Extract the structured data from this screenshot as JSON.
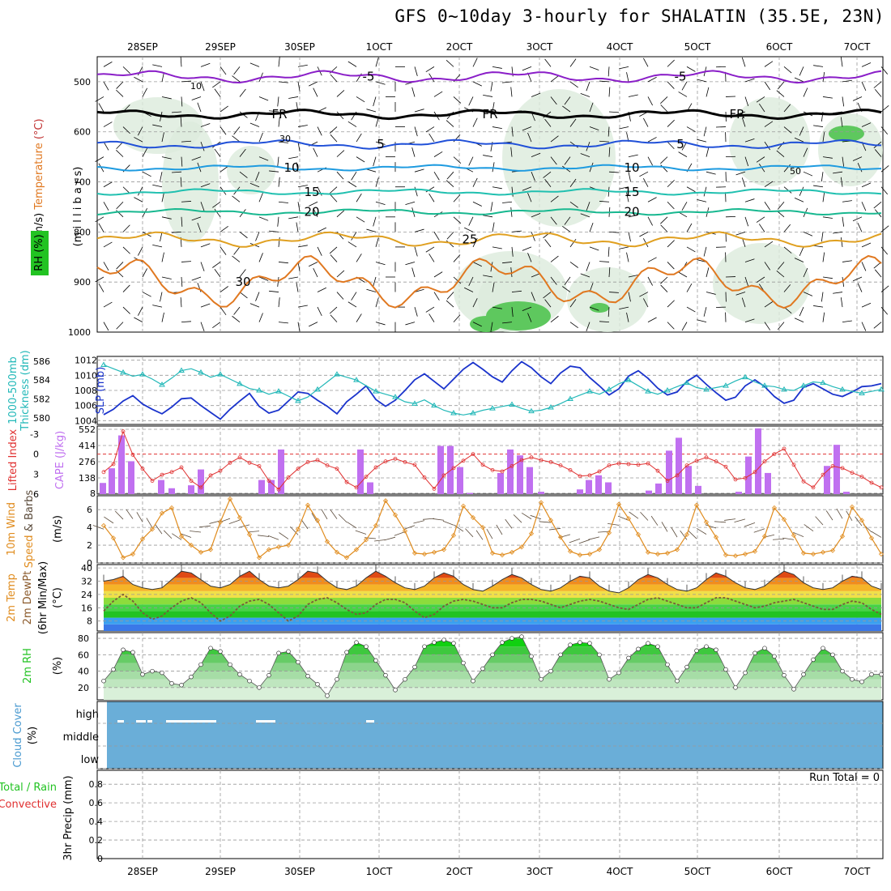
{
  "title": "GFS 0~10day 3-hourly for SHALATIN (35.5E, 23N)",
  "dates": [
    "28SEP",
    "29SEP",
    "30SEP",
    "1OCT",
    "2OCT",
    "3OCT",
    "4OCT",
    "5OCT",
    "6OCT",
    "7OCT"
  ],
  "colors": {
    "temp_lines": "#1e90ff",
    "slp": "#1a33cc",
    "thickness": "#22b8b8",
    "lifted": "#e03030",
    "cape": "#c070f0",
    "wind": "#e08c1e",
    "rh_fill": "#22c322",
    "cloud": "#6aaed8",
    "frz": "#000000",
    "minus5": "#8a1ec8"
  },
  "chart_data": [
    {
      "type": "heatmap",
      "panel": "upper-air cross section",
      "ylabel": "Wind (m/s) Temperature (°C) RH (%)   (m i l l i b a r s)",
      "y_ticks": [
        500,
        600,
        700,
        800,
        900,
        1000
      ],
      "ylim": [
        1000,
        450
      ],
      "isotherm_labels": [
        "-5",
        "FR",
        "5",
        "10",
        "15",
        "20",
        "25",
        "30"
      ],
      "rh_labels": [
        "10",
        "30",
        "50"
      ]
    },
    {
      "type": "line",
      "panel": "sea level pressure and thickness",
      "ylabel_left": "1000-500mb Thickness (dm)",
      "ylabel_right": "SLP (mb)",
      "y_ticks_left": [
        580,
        582,
        584,
        586
      ],
      "y_ticks_right": [
        1004,
        1006,
        1008,
        1010,
        1012
      ],
      "ylim_slp": [
        1003.5,
        1012.5
      ],
      "series": [
        {
          "name": "SLP (mb)",
          "values": [
            1004.8,
            1005.5,
            1006.6,
            1007.3,
            1006.2,
            1005.5,
            1004.9,
            1005.8,
            1006.9,
            1007.0,
            1006.0,
            1005.1,
            1004.2,
            1005.5,
            1006.6,
            1007.6,
            1005.9,
            1005.0,
            1005.4,
            1006.6,
            1007.8,
            1007.6,
            1006.7,
            1005.9,
            1004.9,
            1006.5,
            1007.5,
            1008.6,
            1006.8,
            1005.9,
            1006.7,
            1008.0,
            1009.4,
            1010.2,
            1009.2,
            1008.2,
            1009.5,
            1010.8,
            1011.7,
            1010.8,
            1009.8,
            1009.1,
            1010.6,
            1011.8,
            1011.0,
            1009.8,
            1008.9,
            1010.3,
            1011.2,
            1011.0,
            1009.7,
            1008.6,
            1007.4,
            1008.2,
            1009.9,
            1010.6,
            1009.6,
            1008.3,
            1007.4,
            1007.8,
            1009.2,
            1010.0,
            1008.8,
            1007.7,
            1006.7,
            1007.1,
            1008.6,
            1009.4,
            1008.5,
            1007.2,
            1006.3,
            1006.7,
            1008.4,
            1008.9,
            1008.2,
            1007.5,
            1007.2,
            1007.8,
            1008.5,
            1008.6,
            1008.9
          ]
        },
        {
          "name": "Thickness (dm)",
          "values": [
            585.6,
            585.2,
            584.8,
            584.4,
            584.6,
            584.1,
            583.5,
            584.2,
            585.0,
            585.2,
            584.8,
            584.3,
            584.6,
            584.1,
            583.6,
            583.1,
            582.9,
            582.5,
            582.8,
            582.3,
            581.8,
            582.2,
            583.0,
            583.8,
            584.6,
            584.3,
            584.0,
            583.4,
            582.8,
            582.5,
            582.2,
            581.7,
            581.5,
            581.9,
            581.3,
            580.8,
            580.5,
            580.3,
            580.5,
            580.8,
            581.0,
            581.2,
            581.4,
            581.0,
            580.7,
            580.8,
            581.1,
            581.5,
            582.0,
            582.4,
            582.8,
            582.5,
            583.0,
            583.6,
            584.0,
            583.4,
            582.8,
            582.5,
            582.9,
            583.3,
            583.7,
            583.2,
            583.0,
            583.2,
            583.4,
            583.9,
            584.3,
            583.8,
            583.4,
            583.3,
            583.0,
            582.9,
            583.4,
            583.8,
            583.7,
            583.3,
            583.0,
            582.8,
            582.6,
            582.8,
            583.0
          ]
        }
      ]
    },
    {
      "type": "bar",
      "panel": "lifted index and CAPE",
      "ylabel_left": "Lifted Index",
      "ylabel_right": "CAPE (J/kg)",
      "y_ticks_left": [
        "-3",
        "0",
        "3",
        "6"
      ],
      "y_ticks_right": [
        "552",
        "414",
        "276",
        "138",
        "8"
      ],
      "ylim_cape": [
        0,
        552
      ],
      "ylim_li": [
        6,
        -4.2
      ],
      "series": [
        {
          "name": "CAPE (J/kg)",
          "values": [
            95,
            220,
            500,
            280,
            0,
            0,
            0,
            0,
            120,
            60,
            0,
            80,
            210,
            0,
            0,
            0,
            0,
            0,
            0,
            0,
            0,
            0,
            0,
            0,
            0,
            0,
            0,
            0,
            0,
            0,
            0,
            0,
            0,
            0,
            0,
            0,
            0,
            0,
            0,
            0,
            0,
            0,
            0,
            0,
            0,
            0,
            0,
            0,
            0,
            0,
            0,
            0,
            0,
            0,
            0,
            0,
            0,
            0,
            0,
            0,
            0,
            0,
            0,
            0,
            0,
            0,
            0,
            0,
            0,
            0,
            0,
            0,
            0,
            0,
            0,
            0,
            0,
            0,
            0,
            0,
            0
          ]
        },
        {
          "name": "Lifted Index",
          "values": [
            2.7,
            1.5,
            -3.4,
            0.1,
            2.2,
            4.0,
            3.1,
            2.7,
            2.0,
            4.0,
            5.0,
            3.2,
            2.5,
            1.3,
            0.5,
            1.3,
            1.8,
            4.0,
            5.3,
            3.5,
            2.2,
            1.2,
            0.9,
            1.7,
            2.2,
            4.2,
            5.0,
            3.4,
            2.0,
            1.1,
            0.7,
            1.2,
            1.6,
            3.5,
            5.2,
            3.2,
            2.1,
            1.0,
            0.0,
            1.6,
            2.4,
            2.6,
            1.8,
            0.9,
            0.5,
            0.9,
            1.2,
            1.7,
            2.4,
            3.3,
            3.2,
            2.6,
            1.7,
            1.4,
            1.5,
            1.6,
            1.4,
            2.5,
            4.0,
            3.2,
            1.7,
            1.0,
            0.5,
            1.1,
            1.9,
            3.8,
            3.6,
            2.7,
            1.1,
            0.0,
            -0.8,
            1.6,
            4.1,
            5.0,
            3.1,
            1.8,
            2.1,
            2.8,
            3.4,
            4.3,
            5.0
          ]
        }
      ]
    },
    {
      "type": "line",
      "panel": "10m wind",
      "ylabel": "10m Wind Speed & Barbs (m/s)",
      "y_ticks": [
        "0",
        "2",
        "4",
        "6"
      ],
      "ylim": [
        0,
        7.2
      ],
      "series": [
        {
          "name": "10m Wind Speed",
          "values": [
            4.2,
            2.8,
            0.6,
            1.0,
            2.7,
            3.8,
            5.6,
            6.2,
            3.0,
            2.0,
            1.2,
            1.5,
            4.6,
            7.2,
            5.1,
            3.2,
            0.6,
            1.5,
            1.8,
            2.0,
            3.8,
            6.5,
            4.8,
            2.4,
            1.2,
            0.6,
            1.5,
            2.6,
            4.2,
            7.0,
            5.4,
            3.6,
            1.1,
            1.0,
            1.2,
            1.5,
            3.1,
            6.4,
            5.1,
            4.0,
            1.1,
            0.9,
            1.2,
            1.8,
            3.3,
            6.8,
            4.8,
            2.9,
            1.3,
            0.9,
            1.0,
            1.5,
            3.4,
            6.6,
            5.0,
            3.2,
            1.2,
            1.0,
            1.1,
            1.5,
            3.2,
            6.5,
            4.6,
            2.9,
            0.9,
            0.8,
            1.0,
            1.3,
            3.0,
            6.2,
            4.9,
            3.1,
            1.1,
            1.0,
            1.2,
            1.4,
            3.0,
            6.3,
            4.8,
            2.8,
            1.0
          ]
        }
      ]
    },
    {
      "type": "area",
      "panel": "2m temperature and dewpoint",
      "ylabel": "2m Temp 2m DewPt (6hr Min/Max) (°C)",
      "y_ticks": [
        "8",
        "16",
        "24",
        "32",
        "40"
      ],
      "ylim": [
        2,
        42
      ],
      "series": [
        {
          "name": "2m Temp",
          "values": [
            32,
            33,
            35,
            30,
            28,
            27,
            28,
            33,
            38,
            37,
            33,
            29,
            28,
            30,
            35,
            38,
            33,
            29,
            28,
            29,
            33,
            38,
            37,
            32,
            28,
            27,
            29,
            34,
            38,
            35,
            31,
            28,
            27,
            29,
            34,
            37,
            35,
            30,
            27,
            26,
            29,
            33,
            36,
            34,
            30,
            27,
            26,
            28,
            32,
            35,
            34,
            29,
            26,
            25,
            28,
            33,
            36,
            34,
            30,
            27,
            26,
            28,
            33,
            37,
            35,
            31,
            28,
            27,
            29,
            34,
            38,
            36,
            31,
            28,
            27,
            28,
            32,
            35,
            34,
            29,
            27
          ]
        },
        {
          "name": "2m DewPt",
          "values": [
            14,
            20,
            24,
            20,
            13,
            9,
            11,
            16,
            20,
            22,
            19,
            13,
            8,
            11,
            17,
            20,
            21,
            18,
            13,
            8,
            11,
            18,
            21,
            22,
            19,
            15,
            12,
            13,
            18,
            21,
            21,
            19,
            14,
            10,
            12,
            17,
            20,
            21,
            20,
            18,
            16,
            16,
            19,
            21,
            21,
            20,
            18,
            16,
            18,
            20,
            21,
            20,
            18,
            16,
            15,
            18,
            21,
            22,
            20,
            18,
            16,
            16,
            19,
            22,
            22,
            20,
            18,
            16,
            17,
            19,
            20,
            21,
            19,
            17,
            15,
            15,
            18,
            20,
            19,
            15,
            12
          ]
        }
      ]
    },
    {
      "type": "area",
      "panel": "2m RH",
      "ylabel": "2m RH (%)",
      "y_ticks": [
        "20",
        "40",
        "60",
        "80"
      ],
      "ylim": [
        5,
        87
      ],
      "series": [
        {
          "name": "2m RH",
          "values": [
            28,
            42,
            66,
            63,
            36,
            40,
            38,
            25,
            23,
            33,
            48,
            68,
            64,
            48,
            36,
            28,
            20,
            35,
            62,
            64,
            51,
            34,
            24,
            10,
            30,
            63,
            75,
            70,
            53,
            35,
            17,
            30,
            45,
            70,
            75,
            78,
            74,
            50,
            28,
            43,
            60,
            75,
            80,
            82,
            58,
            30,
            40,
            60,
            72,
            75,
            74,
            60,
            30,
            38,
            56,
            67,
            74,
            70,
            48,
            28,
            45,
            65,
            70,
            66,
            42,
            20,
            38,
            62,
            68,
            58,
            35,
            18,
            36,
            54,
            68,
            60,
            40,
            30,
            27,
            36,
            36
          ]
        }
      ]
    },
    {
      "type": "heatmap",
      "panel": "cloud cover",
      "ylabel": "Cloud Cover (%)",
      "levels": [
        "high",
        "middle",
        "low"
      ]
    },
    {
      "type": "line",
      "panel": "3hr precip",
      "ylabel": "3hr Precip (mm)",
      "legend": [
        "Total / Rain",
        "Convective"
      ],
      "y_ticks": [
        "0",
        "0.2",
        "0.4",
        "0.6",
        "0.8"
      ],
      "ylim": [
        0,
        0.95
      ],
      "annotation": "Run Total = 0"
    }
  ]
}
